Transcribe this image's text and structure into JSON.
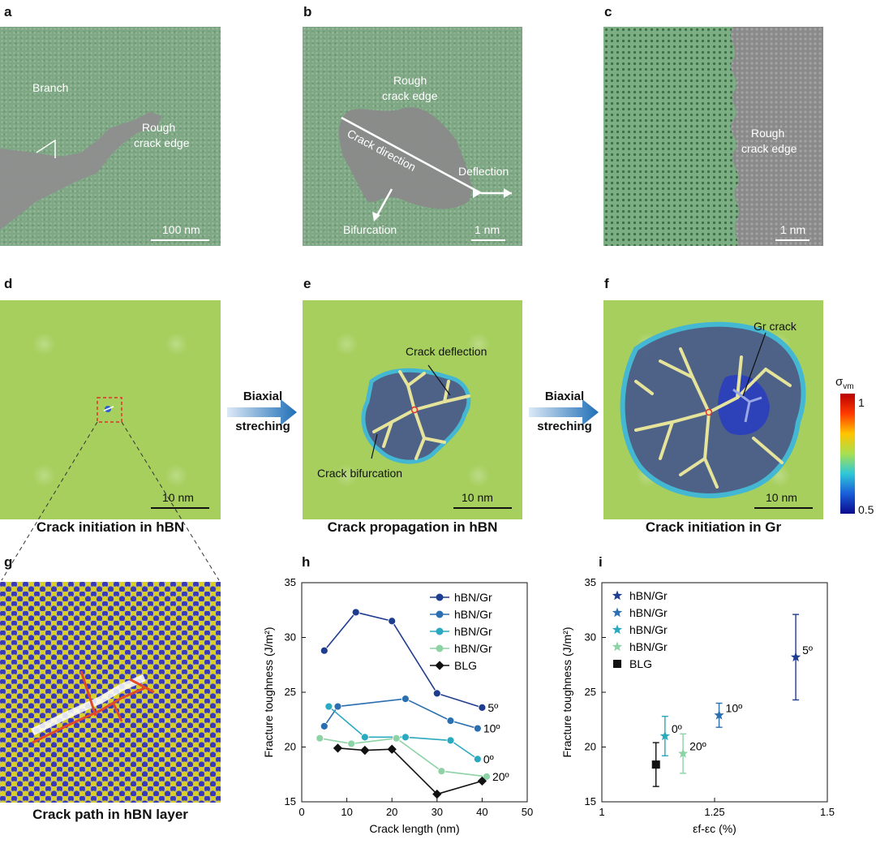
{
  "panels": {
    "a": {
      "label": "a",
      "branch": "Branch",
      "rough1": "Rough",
      "rough2": "crack edge",
      "scale": "100 nm"
    },
    "b": {
      "label": "b",
      "rough1": "Rough",
      "rough2": "crack edge",
      "direction": "Crack direction",
      "deflection": "Deflection",
      "bifurcation": "Bifurcation",
      "scale": "1 nm"
    },
    "c": {
      "label": "c",
      "rough1": "Rough",
      "rough2": "crack edge",
      "scale": "1 nm"
    },
    "d": {
      "label": "d",
      "scale": "10 nm",
      "caption": "Crack initiation in hBN"
    },
    "e": {
      "label": "e",
      "scale": "10 nm",
      "caption": "Crack propagation in hBN",
      "deflection": "Crack deflection",
      "bifurcation": "Crack bifurcation"
    },
    "f": {
      "label": "f",
      "scale": "10 nm",
      "caption": "Crack initiation in Gr",
      "gr_crack": "Gr crack"
    },
    "g": {
      "label": "g",
      "caption": "Crack path in hBN layer"
    },
    "h": {
      "label": "h"
    },
    "i": {
      "label": "i"
    }
  },
  "arrows": [
    {
      "line1": "Biaxial",
      "line2": "streching"
    },
    {
      "line1": "Biaxial",
      "line2": "streching"
    }
  ],
  "colorbar": {
    "symbol": "σ",
    "sub": "vm",
    "max": "1",
    "min": "0.5"
  },
  "chart_data": [
    {
      "type": "line",
      "panel": "h",
      "xlabel": "Crack length (nm)",
      "ylabel": "Fracture toughness (J/m²)",
      "xlim": [
        0,
        50
      ],
      "ylim": [
        15,
        35
      ],
      "xticks": [
        "0",
        "10",
        "20",
        "30",
        "40",
        "50"
      ],
      "yticks": [
        "15",
        "20",
        "25",
        "30",
        "35"
      ],
      "legend": [
        "hBN/Gr",
        "hBN/Gr",
        "hBN/Gr",
        "hBN/Gr",
        "BLG"
      ],
      "series": [
        {
          "name": "hBN/Gr",
          "annotation": "5º",
          "color": "#1f3d8f",
          "x": [
            5,
            12,
            20,
            30,
            40
          ],
          "y": [
            28.8,
            32.3,
            31.5,
            24.9,
            23.6
          ]
        },
        {
          "name": "hBN/Gr",
          "annotation": "10º",
          "color": "#2c6fb0",
          "x": [
            5,
            8,
            23,
            33,
            39
          ],
          "y": [
            21.9,
            23.7,
            24.4,
            22.4,
            21.7
          ]
        },
        {
          "name": "hBN/Gr",
          "annotation": "0º",
          "color": "#2aa9bf",
          "x": [
            6,
            14,
            23,
            33,
            39
          ],
          "y": [
            23.7,
            20.9,
            20.9,
            20.6,
            18.9
          ]
        },
        {
          "name": "hBN/Gr",
          "annotation": "20º",
          "color": "#8dd3a6",
          "x": [
            4,
            11,
            21,
            31,
            41
          ],
          "y": [
            20.8,
            20.3,
            20.8,
            17.8,
            17.3
          ]
        },
        {
          "name": "BLG",
          "annotation": "",
          "color": "#111111",
          "x": [
            8,
            14,
            20,
            30,
            40
          ],
          "y": [
            19.9,
            19.7,
            19.8,
            15.7,
            16.9
          ]
        }
      ]
    },
    {
      "type": "scatter",
      "panel": "i",
      "xlabel": "εf-εc (%)",
      "ylabel": "Fracture toughness (J/m²)",
      "xlim": [
        1,
        1.5
      ],
      "ylim": [
        15,
        35
      ],
      "xticks": [
        "1",
        "1.25",
        "1.5"
      ],
      "yticks": [
        "15",
        "20",
        "25",
        "30",
        "35"
      ],
      "legend": [
        "hBN/Gr",
        "hBN/Gr",
        "hBN/Gr",
        "hBN/Gr",
        "BLG"
      ],
      "points": [
        {
          "name": "hBN/Gr",
          "annotation": "5º",
          "color": "#1f3d8f",
          "marker": "star",
          "x": 1.43,
          "y": 28.2,
          "err": 3.9
        },
        {
          "name": "hBN/Gr",
          "annotation": "10º",
          "color": "#2c6fb0",
          "marker": "star",
          "x": 1.26,
          "y": 22.9,
          "err": 1.1
        },
        {
          "name": "hBN/Gr",
          "annotation": "0º",
          "color": "#2aa9bf",
          "marker": "star",
          "x": 1.14,
          "y": 21.0,
          "err": 1.8
        },
        {
          "name": "hBN/Gr",
          "annotation": "20º",
          "color": "#8dd3a6",
          "marker": "star",
          "x": 1.18,
          "y": 19.4,
          "err": 1.8
        },
        {
          "name": "BLG",
          "annotation": "",
          "color": "#111111",
          "marker": "square",
          "x": 1.12,
          "y": 18.4,
          "err": 2.0
        }
      ]
    }
  ]
}
